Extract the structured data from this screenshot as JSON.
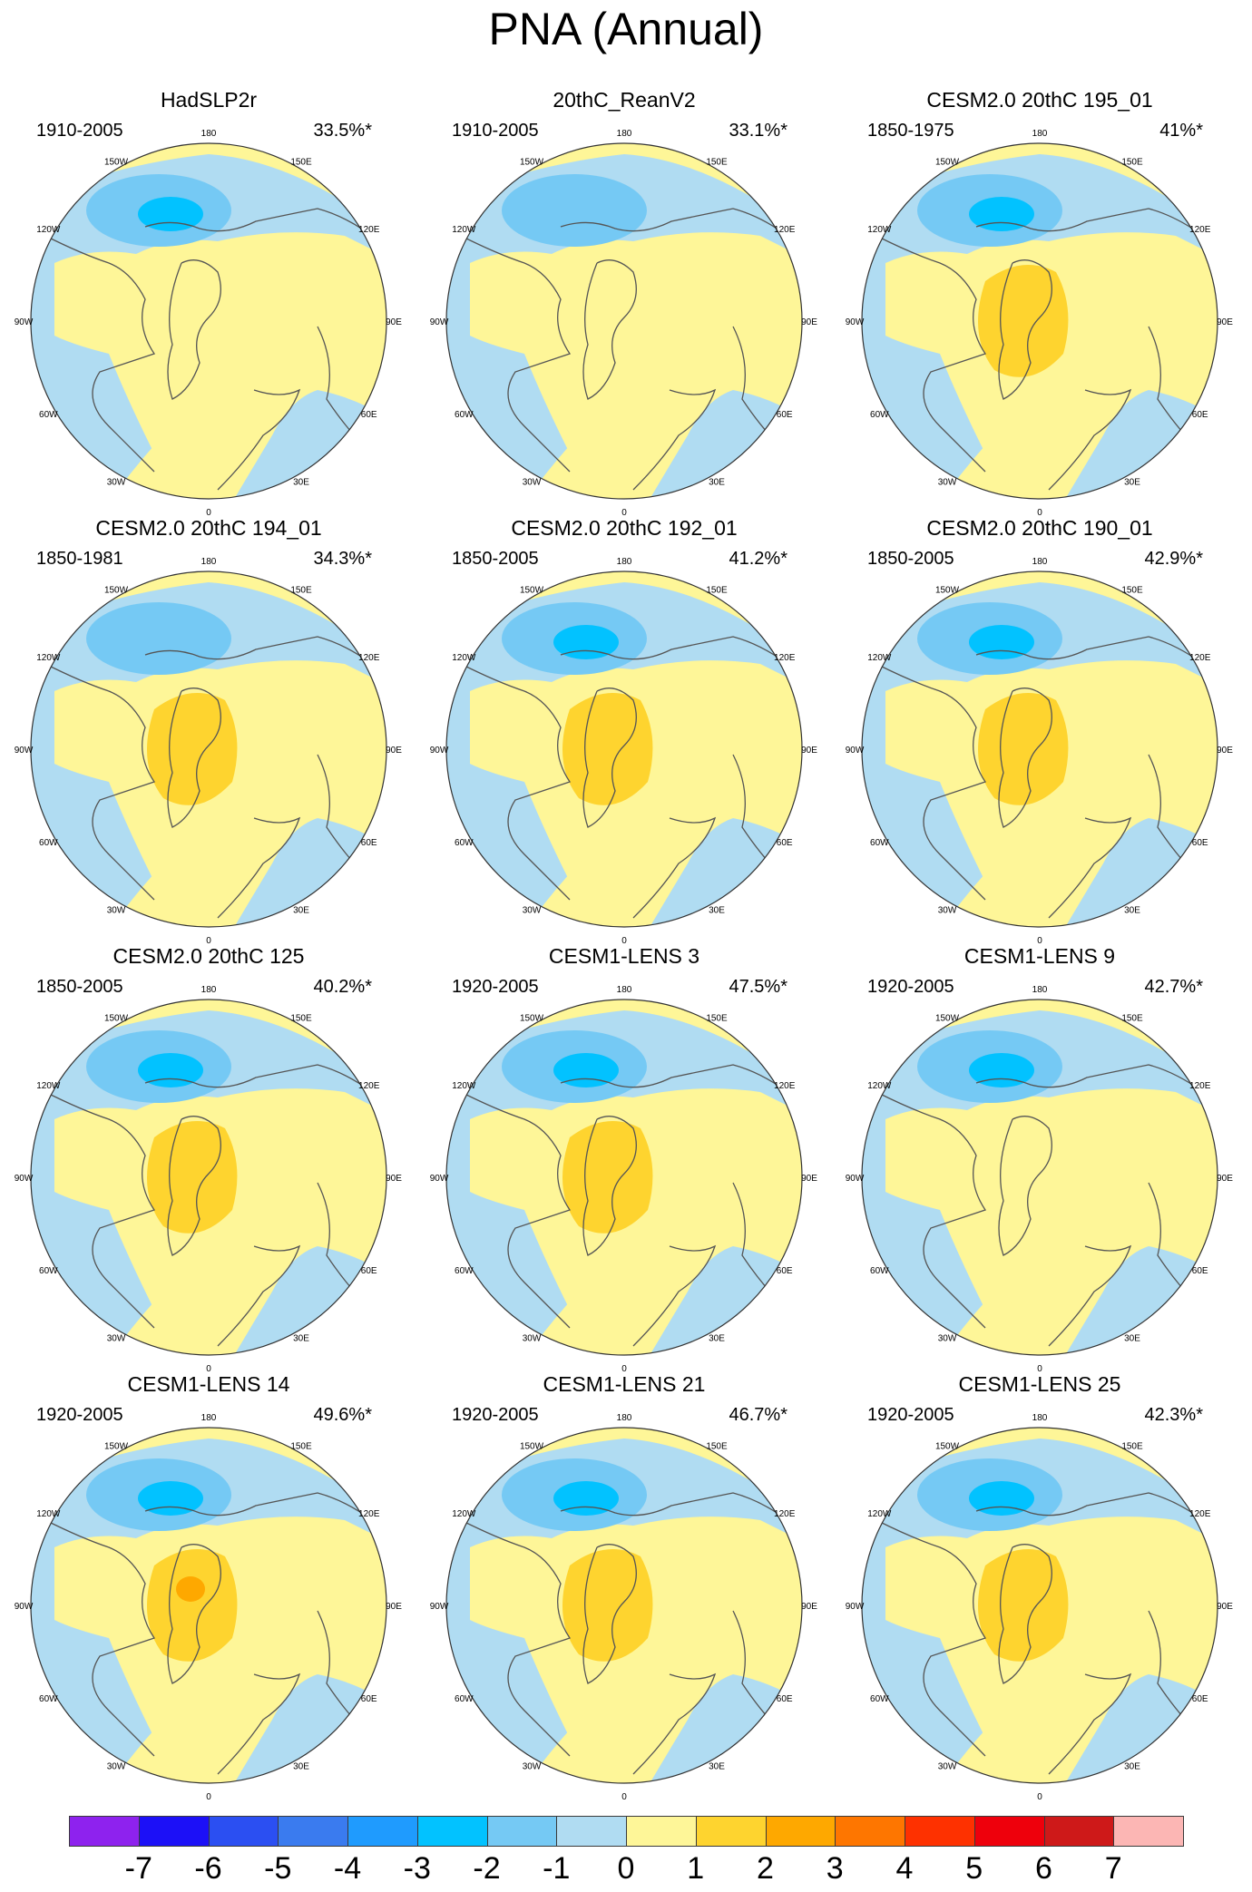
{
  "title": "PNA (Annual)",
  "lon_labels": {
    "top": "180",
    "bottom": "0",
    "left": "90W",
    "right": "90E",
    "upper_left_1": "150W",
    "upper_left_2": "120W",
    "upper_right_1": "150E",
    "upper_right_2": "120E",
    "lower_left_1": "60W",
    "lower_left_2": "30W",
    "lower_right_1": "60E",
    "lower_right_2": "30E"
  },
  "panels": [
    {
      "title": "HadSLP2r",
      "period": "1910-2005",
      "percent": "33.5%*",
      "low_strength": -3,
      "high_strength": 0
    },
    {
      "title": "20thC_ReanV2",
      "period": "1910-2005",
      "percent": "33.1%*",
      "low_strength": -2,
      "high_strength": 0
    },
    {
      "title": "CESM2.0 20thC 195_01",
      "period": "1850-1975",
      "percent": "41%*",
      "low_strength": -3,
      "high_strength": 1
    },
    {
      "title": "CESM2.0 20thC 194_01",
      "period": "1850-1981",
      "percent": "34.3%*",
      "low_strength": -2,
      "high_strength": 1
    },
    {
      "title": "CESM2.0 20thC 192_01",
      "period": "1850-2005",
      "percent": "41.2%*",
      "low_strength": -3,
      "high_strength": 1
    },
    {
      "title": "CESM2.0 20thC 190_01",
      "period": "1850-2005",
      "percent": "42.9%*",
      "low_strength": -3,
      "high_strength": 1
    },
    {
      "title": "CESM2.0 20thC 125",
      "period": "1850-2005",
      "percent": "40.2%*",
      "low_strength": -3,
      "high_strength": 1
    },
    {
      "title": "CESM1-LENS 3",
      "period": "1920-2005",
      "percent": "47.5%*",
      "low_strength": -3,
      "high_strength": 1
    },
    {
      "title": "CESM1-LENS 9",
      "period": "1920-2005",
      "percent": "42.7%*",
      "low_strength": -3,
      "high_strength": 0
    },
    {
      "title": "CESM1-LENS 14",
      "period": "1920-2005",
      "percent": "49.6%*",
      "low_strength": -3,
      "high_strength": 2
    },
    {
      "title": "CESM1-LENS 21",
      "period": "1920-2005",
      "percent": "46.7%*",
      "low_strength": -3,
      "high_strength": 1
    },
    {
      "title": "CESM1-LENS 25",
      "period": "1920-2005",
      "percent": "42.3%*",
      "low_strength": -3,
      "high_strength": 1
    }
  ],
  "colorbar": {
    "colors": [
      "#8e22ee",
      "#1c10f7",
      "#2b4ff2",
      "#3a7bef",
      "#1f9bfe",
      "#02c2ff",
      "#75c9f4",
      "#b0dcf2",
      "#fef698",
      "#fed42f",
      "#fea800",
      "#fe7600",
      "#fe3100",
      "#ee000c",
      "#ce1919",
      "#fcb6b4"
    ],
    "labels": [
      "-7",
      "-6",
      "-5",
      "-4",
      "-3",
      "-2",
      "-1",
      "0",
      "1",
      "2",
      "3",
      "4",
      "5",
      "6",
      "7"
    ]
  }
}
